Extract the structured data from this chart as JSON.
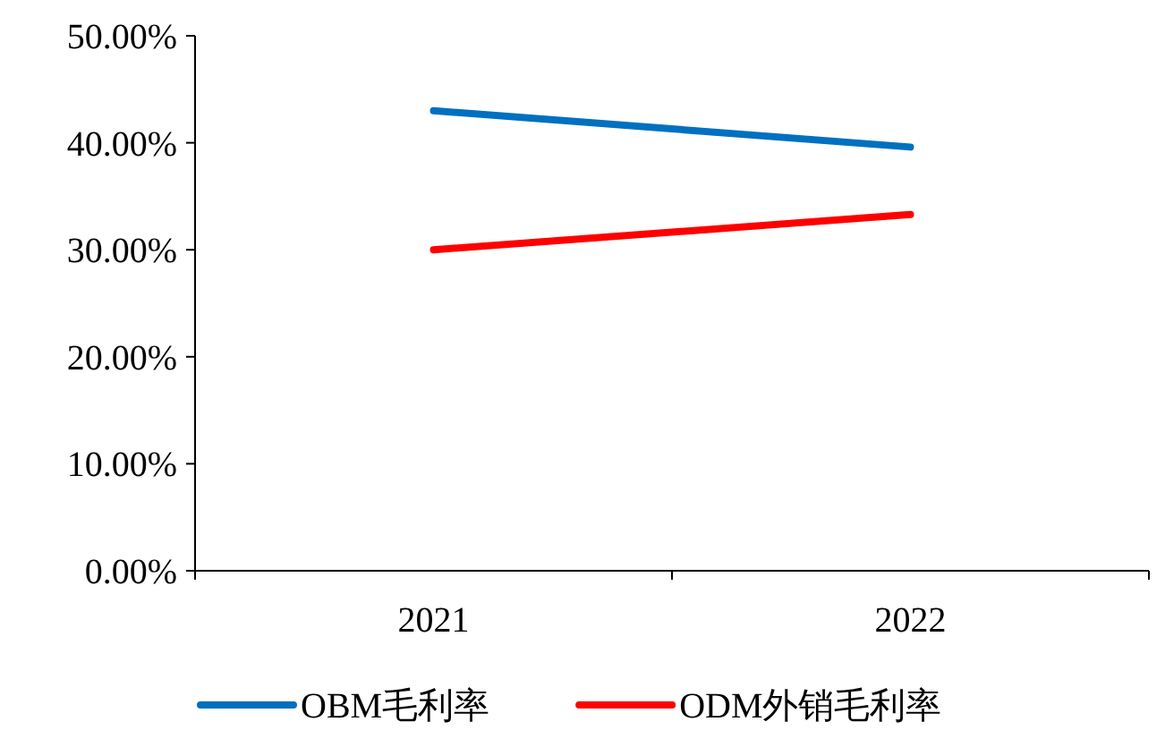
{
  "chart_data": {
    "type": "line",
    "categories": [
      "2021",
      "2022"
    ],
    "series": [
      {
        "name": "OBM毛利率",
        "color": "#0070c0",
        "values": [
          43.0,
          39.6
        ]
      },
      {
        "name": "ODM外销毛利率",
        "color": "#ff0000",
        "values": [
          30.0,
          33.3
        ]
      }
    ],
    "ylim": [
      0,
      50
    ],
    "yticks": [
      {
        "value": 0,
        "label": "0.00%"
      },
      {
        "value": 10,
        "label": "10.00%"
      },
      {
        "value": 20,
        "label": "20.00%"
      },
      {
        "value": 30,
        "label": "30.00%"
      },
      {
        "value": 40,
        "label": "40.00%"
      },
      {
        "value": 50,
        "label": "50.00%"
      }
    ],
    "grid": false,
    "legend": "bottom",
    "marker": "none",
    "line_style": "solid"
  }
}
